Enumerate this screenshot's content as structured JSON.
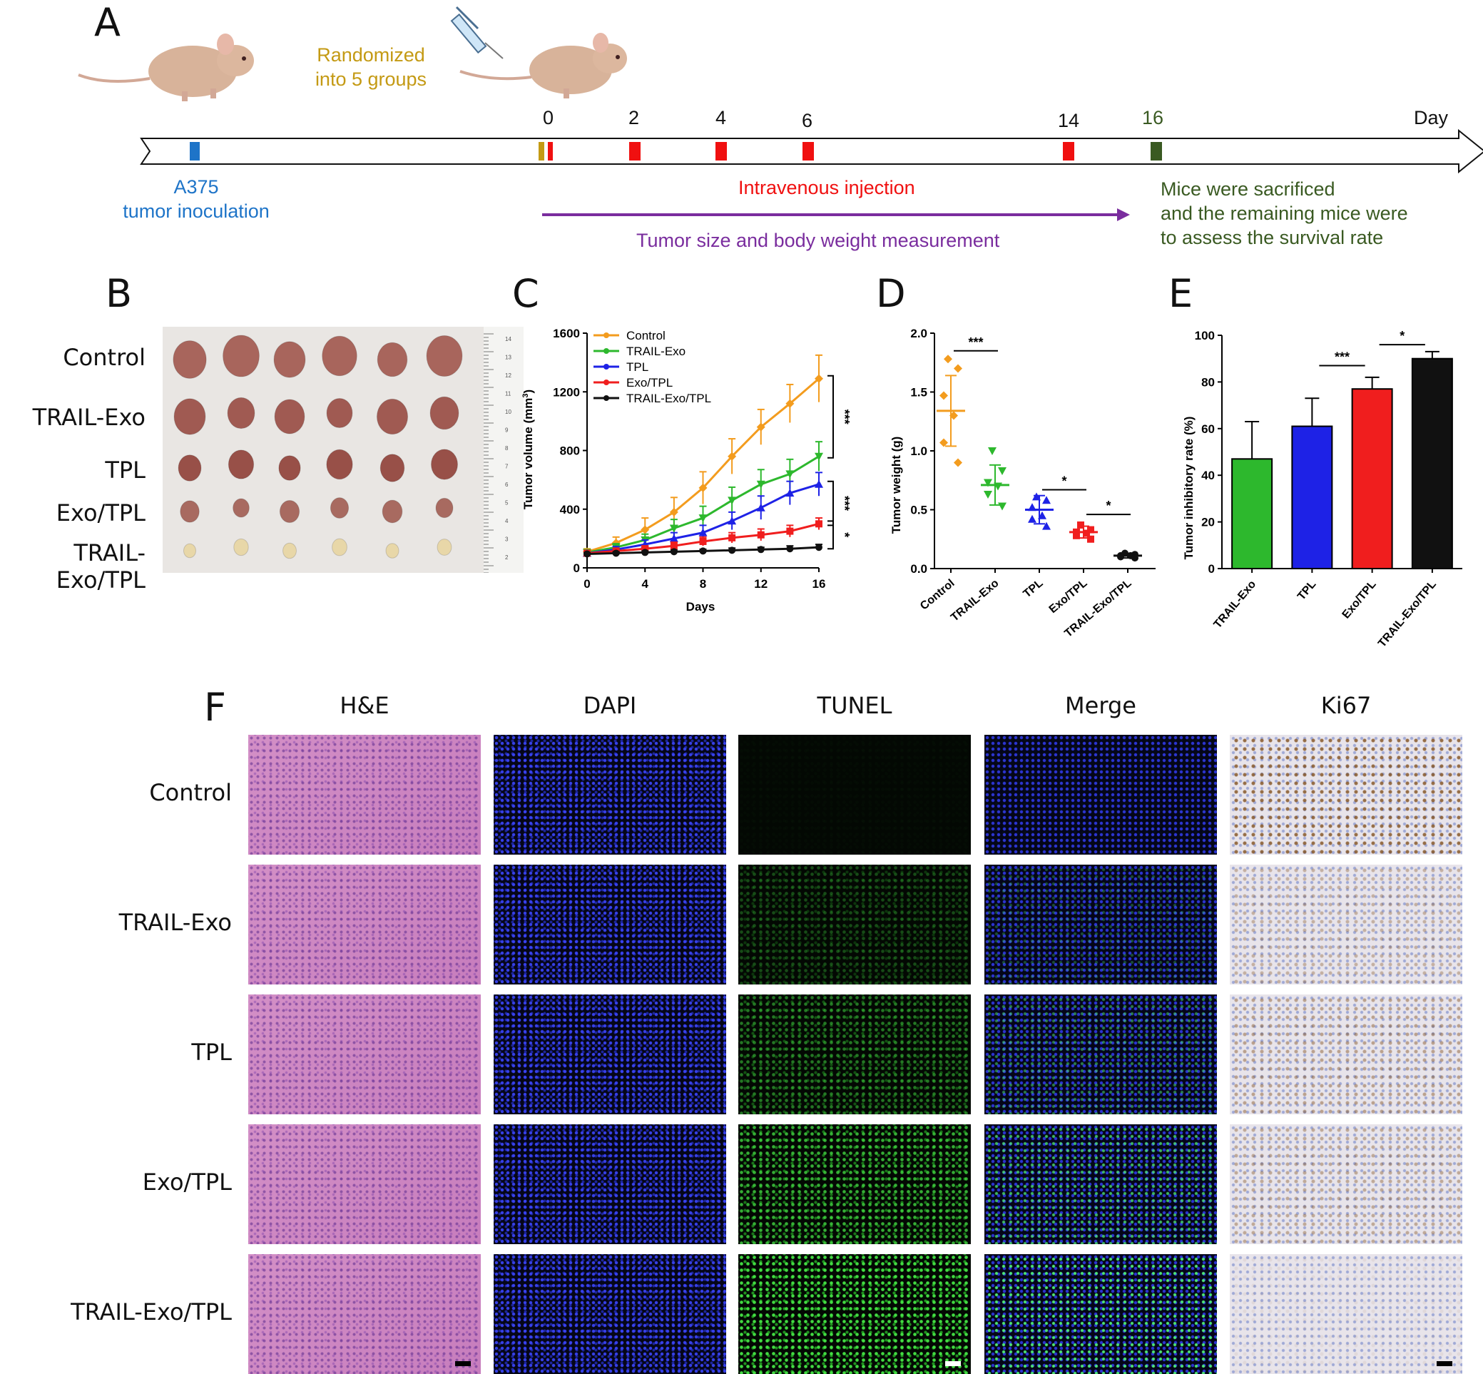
{
  "colors": {
    "control": "#F39C1E",
    "trail_exo": "#2DB82D",
    "tpl": "#1E22E6",
    "exo_tpl": "#F01E1E",
    "trail_exo_tpl": "#111111",
    "tumor_inoc": "#1E74C8",
    "randomized": "#C49A14",
    "injection": "#F01010",
    "measurement": "#7A2D9E",
    "sacrifice": "#3A5A22"
  },
  "panelA": {
    "label": "A",
    "randomized": [
      "Randomized",
      "into 5 groups"
    ],
    "tumor": [
      "A375",
      "tumor inoculation"
    ],
    "injection": "Intravenous injection",
    "measurement": "Tumor size and body weight measurement",
    "sacrifice": [
      "Mice were sacrificed",
      "and the remaining mice were",
      "to assess the survival rate"
    ],
    "day_label": "Day",
    "days": [
      "0",
      "2",
      "4",
      "6",
      "14",
      "16"
    ],
    "icons": [
      "mouse-icon",
      "syringe-icon"
    ]
  },
  "panelB": {
    "label": "B",
    "groups": [
      "Control",
      "TRAIL-Exo",
      "TPL",
      "Exo/TPL",
      "TRAIL-Exo/TPL"
    ],
    "ruler_ticks": [
      "14",
      "13",
      "12",
      "11",
      "10",
      "9",
      "8",
      "7",
      "6",
      "5",
      "4",
      "3",
      "2"
    ]
  },
  "chart_data": [
    {
      "panel": "C",
      "type": "line",
      "title": "",
      "xlabel": "Days",
      "ylabel": "Tumor volume (mm3)",
      "xlim": [
        0,
        16
      ],
      "ylim": [
        0,
        1600
      ],
      "xticks": [
        "0",
        "4",
        "8",
        "12",
        "16"
      ],
      "yticks": [
        "0",
        "400",
        "800",
        "1200",
        "1600"
      ],
      "x": [
        0,
        2,
        4,
        6,
        8,
        10,
        12,
        14,
        16
      ],
      "legend_position": "top-left",
      "series": [
        {
          "name": "Control",
          "color_key": "control",
          "values": [
            110,
            170,
            260,
            380,
            545,
            760,
            960,
            1120,
            1290
          ],
          "err": [
            20,
            40,
            80,
            100,
            110,
            120,
            120,
            130,
            160
          ]
        },
        {
          "name": "TRAIL-Exo",
          "color_key": "trail_exo",
          "values": [
            105,
            140,
            190,
            270,
            340,
            460,
            570,
            640,
            760
          ],
          "err": [
            15,
            25,
            40,
            60,
            80,
            90,
            100,
            100,
            100
          ]
        },
        {
          "name": "TPL",
          "color_key": "tpl",
          "values": [
            100,
            125,
            160,
            200,
            240,
            320,
            410,
            510,
            570
          ],
          "err": [
            15,
            20,
            30,
            40,
            50,
            60,
            80,
            80,
            80
          ]
        },
        {
          "name": "Exo/TPL",
          "color_key": "exo_tpl",
          "values": [
            100,
            115,
            130,
            150,
            180,
            205,
            225,
            250,
            300
          ],
          "err": [
            10,
            15,
            20,
            25,
            30,
            35,
            40,
            40,
            40
          ]
        },
        {
          "name": "TRAIL-Exo/TPL",
          "color_key": "trail_exo_tpl",
          "values": [
            95,
            100,
            105,
            110,
            115,
            120,
            125,
            130,
            140
          ],
          "err": [
            8,
            10,
            10,
            12,
            12,
            15,
            15,
            20,
            20
          ]
        }
      ],
      "annotations": [
        "***",
        "***",
        "*"
      ]
    },
    {
      "panel": "D",
      "type": "scatter",
      "title": "",
      "xlabel": "",
      "ylabel": "Tumor weight (g)",
      "ylim": [
        0,
        2.0
      ],
      "yticks": [
        "0.0",
        "0.5",
        "1.0",
        "1.5",
        "2.0"
      ],
      "categories": [
        "Control",
        "TRAIL-Exo",
        "TPL",
        "Exo/TPL",
        "TRAIL-Exo/TPL"
      ],
      "series": [
        {
          "name": "Control",
          "color_key": "control",
          "mean": 1.34,
          "sd": 0.3,
          "points": [
            1.78,
            1.7,
            1.47,
            1.3,
            1.07,
            0.9
          ]
        },
        {
          "name": "TRAIL-Exo",
          "color_key": "trail_exo",
          "mean": 0.71,
          "sd": 0.17,
          "points": [
            1.0,
            0.83,
            0.73,
            0.7,
            0.63,
            0.53
          ]
        },
        {
          "name": "TPL",
          "color_key": "tpl",
          "mean": 0.5,
          "sd": 0.12,
          "points": [
            0.61,
            0.58,
            0.52,
            0.45,
            0.42,
            0.36
          ]
        },
        {
          "name": "Exo/TPL",
          "color_key": "exo_tpl",
          "mean": 0.31,
          "sd": 0.05,
          "points": [
            0.37,
            0.33,
            0.31,
            0.3,
            0.28,
            0.25
          ]
        },
        {
          "name": "TRAIL-Exo/TPL",
          "color_key": "trail_exo_tpl",
          "mean": 0.11,
          "sd": 0.02,
          "points": [
            0.13,
            0.12,
            0.11,
            0.11,
            0.1,
            0.09
          ]
        }
      ],
      "annotations": [
        "***",
        "*",
        "*"
      ]
    },
    {
      "panel": "E",
      "type": "bar",
      "title": "",
      "xlabel": "",
      "ylabel": "Tumor inhibitory rate (%)",
      "ylim": [
        0,
        100
      ],
      "yticks": [
        "0",
        "20",
        "40",
        "60",
        "80",
        "100"
      ],
      "categories": [
        "TRAIL-Exo",
        "TPL",
        "Exo/TPL",
        "TRAIL-Exo/TPL"
      ],
      "values": [
        47,
        61,
        77,
        90
      ],
      "err": [
        16,
        12,
        5,
        3
      ],
      "color_keys": [
        "trail_exo",
        "tpl",
        "exo_tpl",
        "trail_exo_tpl"
      ],
      "annotations": [
        "***",
        "*"
      ]
    }
  ],
  "panelC": {
    "label": "C"
  },
  "panelD": {
    "label": "D"
  },
  "panelE": {
    "label": "E"
  },
  "panelF": {
    "label": "F",
    "columns": [
      "H&E",
      "DAPI",
      "TUNEL",
      "Merge",
      "Ki67"
    ],
    "rows": [
      "Control",
      "TRAIL-Exo",
      "TPL",
      "Exo/TPL",
      "TRAIL-Exo/TPL"
    ],
    "tunel_intensity": [
      0.02,
      0.3,
      0.5,
      0.75,
      0.95
    ],
    "ki67_intensity": [
      0.8,
      0.35,
      0.45,
      0.4,
      0.08
    ]
  }
}
